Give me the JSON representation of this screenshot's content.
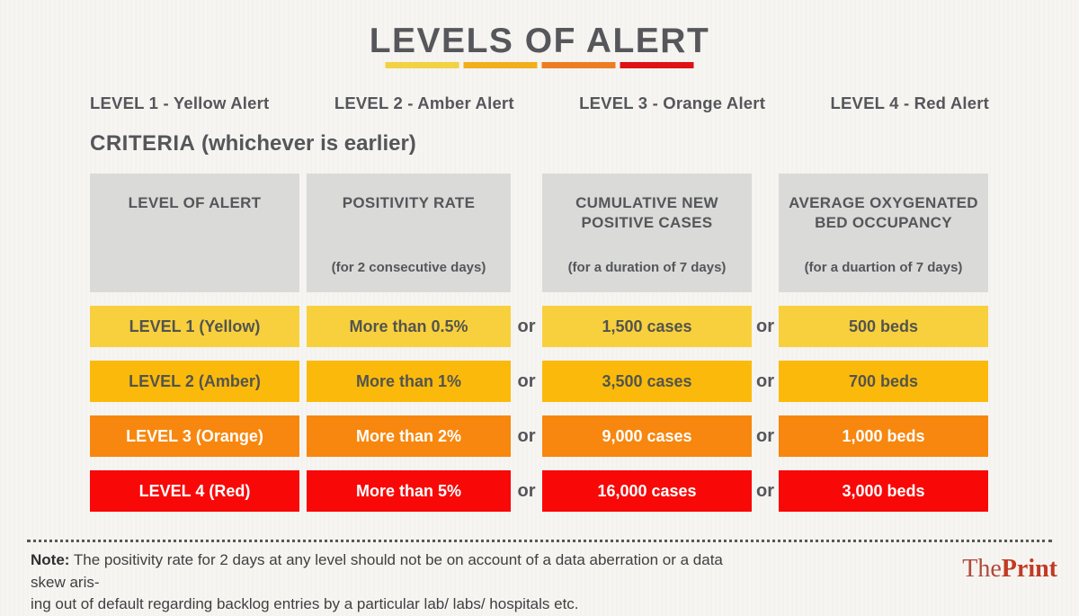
{
  "title": "LEVELS OF ALERT",
  "underline_colors": [
    "#f2d143",
    "#f1af1c",
    "#ed7d23",
    "#df1216"
  ],
  "alert_levels": [
    "LEVEL 1 - Yellow Alert",
    "LEVEL 2 - Amber Alert",
    "LEVEL 3 - Orange Alert",
    "LEVEL 4 - Red Alert"
  ],
  "criteria": {
    "label": "CRITERIA",
    "qualifier": "(whichever is earlier)"
  },
  "table": {
    "or_label": "or",
    "header_bg": "#dadad9",
    "headers": [
      {
        "title": "LEVEL OF ALERT",
        "subtitle": ""
      },
      {
        "title": "POSITIVITY RATE",
        "subtitle": "(for 2 consecutive days)"
      },
      {
        "title": "CUMULATIVE NEW POSITIVE CASES",
        "subtitle": "(for a duration of 7 days)"
      },
      {
        "title": "AVERAGE OXYGENATED BED OCCUPANCY",
        "subtitle": "(for a duartion of 7 days)"
      }
    ],
    "rows": [
      {
        "level": "LEVEL 1 (Yellow)",
        "positivity": "More than 0.5%",
        "cases": "1,500 cases",
        "beds": "500 beds",
        "bg": "#f8d03d",
        "fg": "#53544e"
      },
      {
        "level": "LEVEL 2 (Amber)",
        "positivity": "More than 1%",
        "cases": "3,500 cases",
        "beds": "700 beds",
        "bg": "#fbba0b",
        "fg": "#53544e"
      },
      {
        "level": "LEVEL 3 (Orange)",
        "positivity": "More than 2%",
        "cases": "9,000 cases",
        "beds": "1,000 beds",
        "bg": "#f8870f",
        "fg": "#ffffff"
      },
      {
        "level": "LEVEL 4 (Red)",
        "positivity": "More than 5%",
        "cases": "16,000 cases",
        "beds": "3,000 beds",
        "bg": "#f90808",
        "fg": "#ffffff"
      }
    ]
  },
  "note": {
    "label": "Note:",
    "line1": "The positivity rate for 2 days at any level should not be on account of a data aberration or a data skew aris-",
    "line2": "ing out of default regarding backlog entries by a particular lab/ labs/ hospitals etc."
  },
  "logo": {
    "part1": "The",
    "part2": "Print"
  },
  "chart_data": {
    "type": "table",
    "title": "LEVELS OF ALERT",
    "columns": [
      "LEVEL OF ALERT",
      "POSITIVITY RATE (for 2 consecutive days)",
      "CUMULATIVE NEW POSITIVE CASES (for a duration of 7 days)",
      "AVERAGE OXYGENATED BED OCCUPANCY (for a duartion of 7 days)"
    ],
    "rows": [
      [
        "LEVEL 1 (Yellow)",
        "More than 0.5%",
        "1,500 cases",
        "500 beds"
      ],
      [
        "LEVEL 2 (Amber)",
        "More than 1%",
        "3,500 cases",
        "700 beds"
      ],
      [
        "LEVEL 3 (Orange)",
        "More than 2%",
        "9,000 cases",
        "1,000 beds"
      ],
      [
        "LEVEL 4 (Red)",
        "More than 5%",
        "16,000 cases",
        "3,000 beds"
      ]
    ],
    "row_colors": [
      "#f8d03d",
      "#fbba0b",
      "#f8870f",
      "#f90808"
    ],
    "join_logic": "or (whichever is earlier)"
  }
}
